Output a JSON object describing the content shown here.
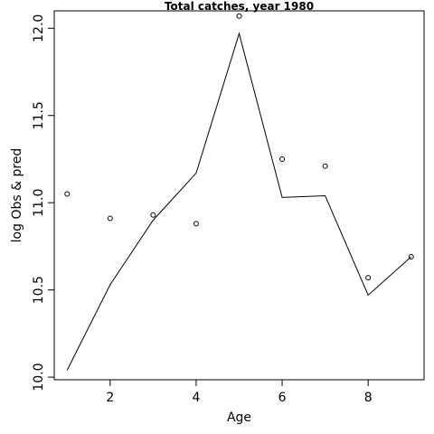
{
  "chart_data": {
    "type": "line",
    "title": "Total catches, year 1980",
    "xlabel": "Age",
    "ylabel": "log Obs & pred",
    "xlim": [
      0.7,
      9.3
    ],
    "ylim": [
      9.985,
      12.1
    ],
    "x_ticks": [
      2,
      4,
      6,
      8
    ],
    "x_tick_labels": [
      "2",
      "4",
      "6",
      "8"
    ],
    "y_ticks": [
      10.0,
      10.5,
      11.0,
      11.5,
      12.0
    ],
    "y_tick_labels": [
      "10.0",
      "10.5",
      "11.0",
      "11.5",
      "12.0"
    ],
    "grid": false,
    "legend": "none",
    "series": [
      {
        "mark": "points",
        "x": [
          1,
          2,
          3,
          4,
          5,
          6,
          7,
          8,
          9
        ],
        "y": [
          11.05,
          10.91,
          10.93,
          10.88,
          12.07,
          11.25,
          11.21,
          10.57,
          10.69
        ]
      },
      {
        "mark": "line",
        "x": [
          1,
          2,
          3,
          4,
          5,
          6,
          7,
          8,
          9
        ],
        "y": [
          10.04,
          10.53,
          10.9,
          11.17,
          11.97,
          11.03,
          11.04,
          10.47,
          10.69
        ]
      }
    ]
  }
}
